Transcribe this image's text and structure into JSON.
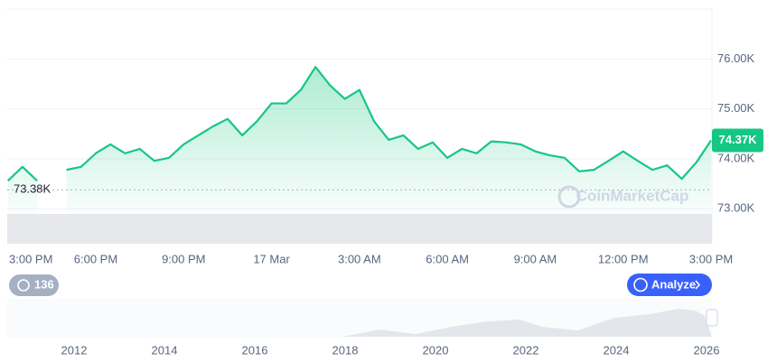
{
  "chart_data": {
    "type": "line",
    "categories": [
      "3:00 PM",
      null,
      null,
      null,
      null,
      null,
      "6:00 PM",
      null,
      null,
      null,
      null,
      null,
      "9:00 PM",
      null,
      null,
      null,
      null,
      null,
      "17 Mar",
      null,
      null,
      null,
      null,
      null,
      "3:00 AM",
      null,
      null,
      null,
      null,
      null,
      "6:00 AM",
      null,
      null,
      null,
      null,
      null,
      "9:00 AM",
      null,
      null,
      null,
      null,
      null,
      "12:00 PM",
      null,
      null,
      null,
      null,
      null,
      "3:00 PM"
    ],
    "series": [
      {
        "color": "#16c784",
        "values": [
          73560,
          73840,
          73560,
          null,
          73780,
          73840,
          74110,
          74290,
          74110,
          74200,
          73960,
          74020,
          74290,
          74470,
          74650,
          74800,
          74470,
          74750,
          75110,
          75110,
          75380,
          75840,
          75470,
          75200,
          75380,
          74750,
          74380,
          74470,
          74200,
          74330,
          74020,
          74200,
          74110,
          74350,
          74330,
          74290,
          74150,
          74070,
          74020,
          73750,
          73780,
          73960,
          74150,
          73960,
          73780,
          73870,
          73600,
          73930,
          74370
        ]
      }
    ],
    "ylim": [
      72300,
      77000
    ],
    "yticks": [
      {
        "value": 73000,
        "label": "73.00K"
      },
      {
        "value": 74000,
        "label": "74.00K"
      },
      {
        "value": 75000,
        "label": "75.00K"
      },
      {
        "value": 76000,
        "label": "76.00K"
      }
    ],
    "grid": true,
    "reference_line": {
      "value": 73380,
      "label": "73.38K"
    },
    "current_price": {
      "value": 74370,
      "label": "74.37K"
    },
    "watermark": "CoinMarketCap"
  },
  "navigator": {
    "xlim": [
      2010.52,
      2026.12
    ],
    "xticks": [
      2012,
      2014,
      2016,
      2018,
      2020,
      2022,
      2024,
      2026
    ]
  },
  "controls": {
    "history_count": "136",
    "analyze": "Analyze"
  }
}
